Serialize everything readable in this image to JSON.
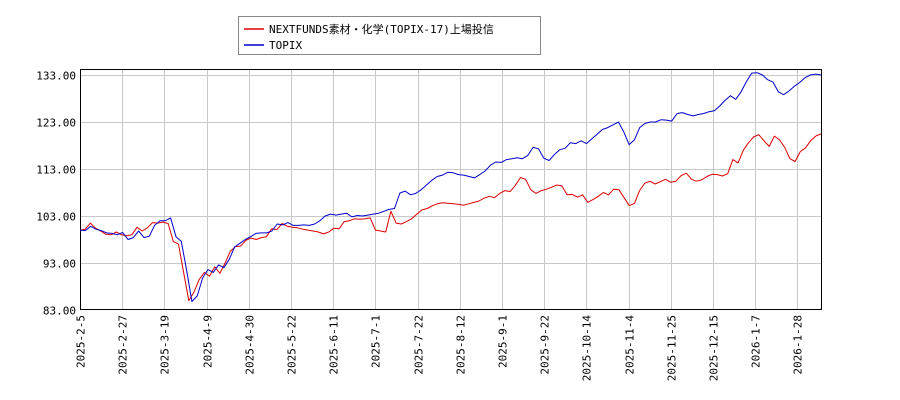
{
  "chart_data": {
    "type": "line",
    "title": "",
    "xlabel": "",
    "ylabel": "",
    "ylim": [
      83,
      135
    ],
    "yticks": [
      "83.00",
      "93.00",
      "103.00",
      "113.00",
      "123.00",
      "133.00"
    ],
    "ytick_values": [
      83,
      93,
      103,
      113,
      123,
      133
    ],
    "xtick_labels": [
      "2025-2-5",
      "2025-2-27",
      "2025-3-19",
      "2025-4-9",
      "2025-4-30",
      "2025-5-22",
      "2025-6-11",
      "2025-7-1",
      "2025-7-22",
      "2025-8-12",
      "2025-9-1",
      "2025-9-22",
      "2025-10-14",
      "2025-11-4",
      "2025-11-25",
      "2025-12-15",
      "2026-1-7",
      "2026-1-28"
    ],
    "grid": true,
    "legend_position": "top-left",
    "series": [
      {
        "name": "NEXTFUNDS素材・化学(TOPIX-17)上場投信",
        "color": "#dd0000",
        "values": [
          100.0,
          100.2,
          101.5,
          100.4,
          99.8,
          99.1,
          99.0,
          99.6,
          99.0,
          98.8,
          99.0,
          100.6,
          99.8,
          100.5,
          101.6,
          101.5,
          101.7,
          101.4,
          97.6,
          97.0,
          91.0,
          85.0,
          86.8,
          89.5,
          91.0,
          90.2,
          92.2,
          90.8,
          93.0,
          95.5,
          96.5,
          96.6,
          97.8,
          98.3,
          98.0,
          98.4,
          98.6,
          100.3,
          100.1,
          101.4,
          100.8,
          100.6,
          100.5,
          100.2,
          100.0,
          99.8,
          99.6,
          99.2,
          99.6,
          100.4,
          100.3,
          101.8,
          102.0,
          102.4,
          102.3,
          102.4,
          102.6,
          100.0,
          99.8,
          99.6,
          104.0,
          101.5,
          101.3,
          101.8,
          102.4,
          103.4,
          104.3,
          104.6,
          105.2,
          105.6,
          105.8,
          105.7,
          105.6,
          105.5,
          105.3,
          105.6,
          105.9,
          106.2,
          106.8,
          107.2,
          106.9,
          107.8,
          108.4,
          108.2,
          109.5,
          111.2,
          110.8,
          108.6,
          107.8,
          108.4,
          108.7,
          109.1,
          109.6,
          109.4,
          107.5,
          107.6,
          107.0,
          107.5,
          105.9,
          106.5,
          107.2,
          108.0,
          107.5,
          108.7,
          108.6,
          106.9,
          105.2,
          105.7,
          108.4,
          110.0,
          110.4,
          109.8,
          110.3,
          110.8,
          110.2,
          110.4,
          111.6,
          112.1,
          110.8,
          110.4,
          110.7,
          111.4,
          111.9,
          111.8,
          111.5,
          112.0,
          115.0,
          114.3,
          117.0,
          118.6,
          119.8,
          120.3,
          119.0,
          117.8,
          120.0,
          119.2,
          117.6,
          115.2,
          114.6,
          116.7,
          117.5,
          119.0,
          120.0,
          120.5
        ]
      },
      {
        "name": "TOPIX",
        "color": "#0000cc",
        "values": [
          100.0,
          99.9,
          100.8,
          100.2,
          99.9,
          99.4,
          99.3,
          99.0,
          99.5,
          98.0,
          98.4,
          99.8,
          98.4,
          98.7,
          101.0,
          102.0,
          102.0,
          102.6,
          98.6,
          97.6,
          91.5,
          84.8,
          86.0,
          89.8,
          91.6,
          91.0,
          92.6,
          92.0,
          93.8,
          96.4,
          97.2,
          98.0,
          98.6,
          99.3,
          99.4,
          99.4,
          99.8,
          101.3,
          101.1,
          101.6,
          101.0,
          101.0,
          101.1,
          101.0,
          101.3,
          102.0,
          103.0,
          103.4,
          103.2,
          103.4,
          103.6,
          102.8,
          103.1,
          103.0,
          103.2,
          103.4,
          103.6,
          104.0,
          104.4,
          104.6,
          107.9,
          108.3,
          107.5,
          107.8,
          108.6,
          109.6,
          110.6,
          111.4,
          111.7,
          112.3,
          112.2,
          111.8,
          111.7,
          111.4,
          111.1,
          111.8,
          112.6,
          113.8,
          114.5,
          114.4,
          115.0,
          115.2,
          115.4,
          115.2,
          115.9,
          117.6,
          117.3,
          115.3,
          114.8,
          116.1,
          117.1,
          117.4,
          118.6,
          118.4,
          119.0,
          118.4,
          119.4,
          120.4,
          121.4,
          121.8,
          122.4,
          123.0,
          120.9,
          118.2,
          119.2,
          121.8,
          122.7,
          123.0,
          123.0,
          123.5,
          123.4,
          123.2,
          124.8,
          125.0,
          124.6,
          124.3,
          124.6,
          124.8,
          125.2,
          125.4,
          126.4,
          127.6,
          128.6,
          127.8,
          129.4,
          131.6,
          133.4,
          133.5,
          133.0,
          132.0,
          131.5,
          129.4,
          128.8,
          129.6,
          130.6,
          131.4,
          132.4,
          133.0,
          133.2,
          133.0
        ]
      }
    ]
  }
}
